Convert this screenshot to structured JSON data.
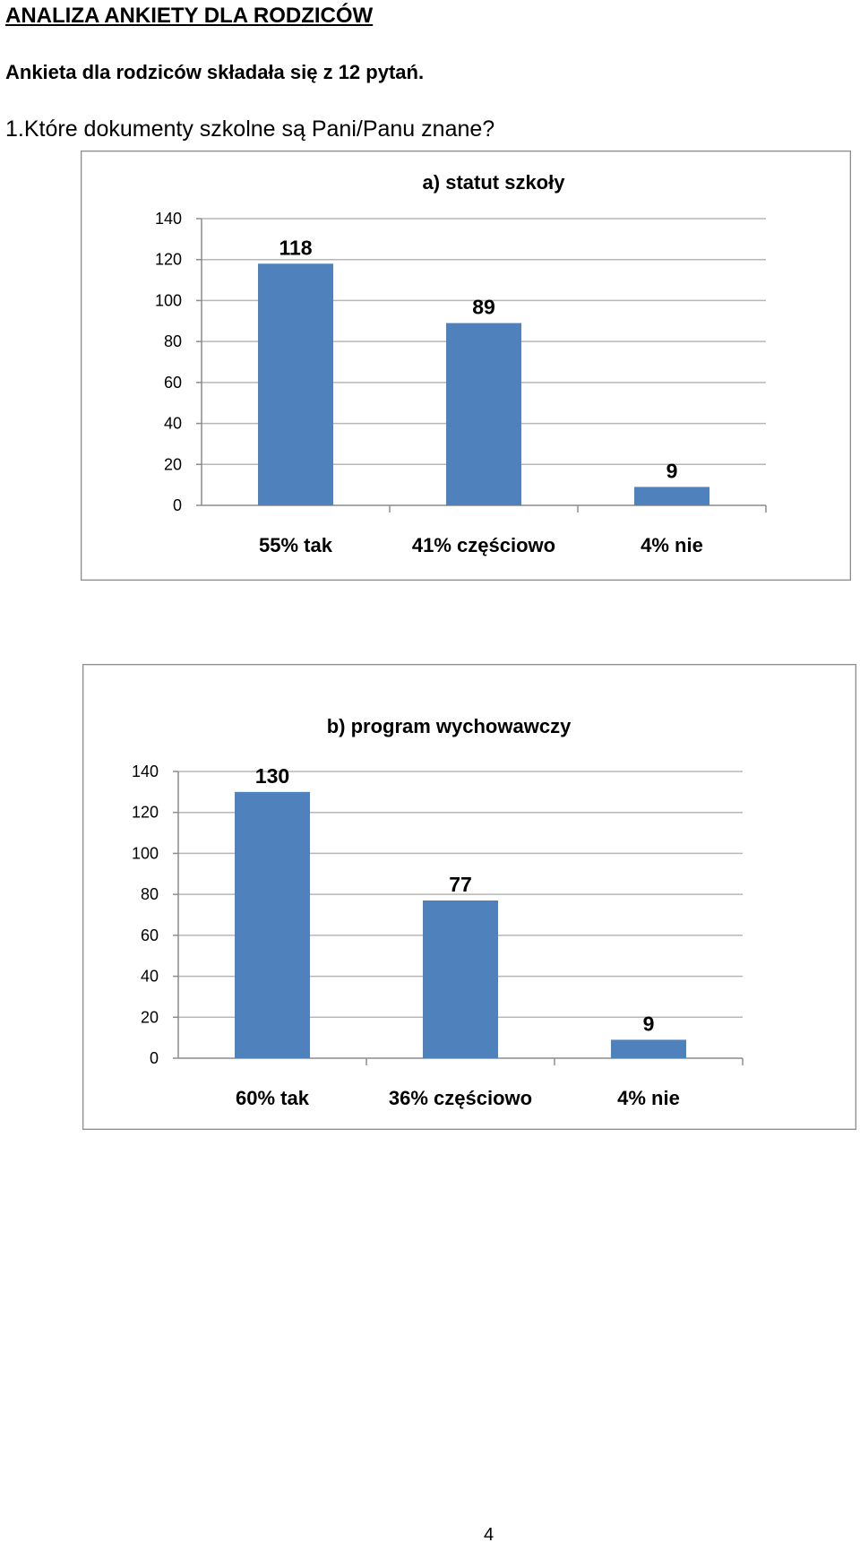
{
  "document": {
    "title": "ANALIZA ANKIETY DLA RODZICÓW",
    "intro": "Ankieta dla rodziców składała się z 12 pytań.",
    "question": "1.Które dokumenty szkolne są Pani/Panu znane?",
    "page_number": "4"
  },
  "colors": {
    "bar": "#4f81bd",
    "gridline": "#b7b7b7",
    "axis": "#8c8c8c"
  },
  "chart_data": [
    {
      "type": "bar",
      "title": "a) statut szkoły",
      "categories": [
        "55% tak",
        "41% częściowo",
        "4% nie"
      ],
      "values": [
        118,
        89,
        9
      ],
      "data_labels": [
        "118",
        "89",
        "9"
      ],
      "ylim": [
        0,
        140
      ],
      "yticks": [
        0,
        20,
        40,
        60,
        80,
        100,
        120,
        140
      ],
      "grid": true,
      "legend": "none"
    },
    {
      "type": "bar",
      "title": "b) program wychowawczy",
      "categories": [
        "60% tak",
        "36% częściowo",
        "4% nie"
      ],
      "values": [
        130,
        77,
        9
      ],
      "data_labels": [
        "130",
        "77",
        "9"
      ],
      "ylim": [
        0,
        140
      ],
      "yticks": [
        0,
        20,
        40,
        60,
        80,
        100,
        120,
        140
      ],
      "grid": true,
      "legend": "none"
    }
  ]
}
